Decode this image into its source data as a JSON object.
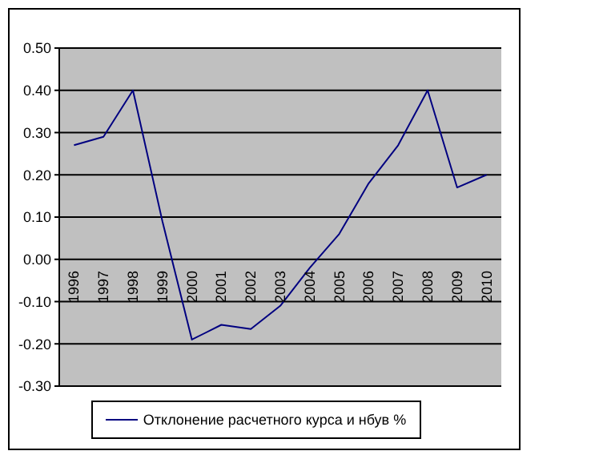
{
  "chart_data": {
    "type": "line",
    "categories": [
      "1996",
      "1997",
      "1998",
      "1999",
      "2000",
      "2001",
      "2002",
      "2003",
      "2004",
      "2005",
      "2006",
      "2007",
      "2008",
      "2009",
      "2010"
    ],
    "series": [
      {
        "name": "Отклонение расчетного курса и нбув %",
        "color": "#000080",
        "values": [
          0.27,
          0.29,
          0.4,
          0.09,
          -0.19,
          -0.155,
          -0.165,
          -0.11,
          -0.02,
          0.06,
          0.18,
          0.27,
          0.4,
          0.17,
          0.2
        ]
      }
    ],
    "ylim": [
      -0.3,
      0.5
    ],
    "yticks": [
      {
        "value": -0.3,
        "label": "-0.30"
      },
      {
        "value": -0.2,
        "label": "-0.20"
      },
      {
        "value": -0.1,
        "label": "-0.10"
      },
      {
        "value": 0,
        "label": "0.00"
      },
      {
        "value": 0.1,
        "label": "0.10"
      },
      {
        "value": 0.2,
        "label": "0.20"
      },
      {
        "value": 0.3,
        "label": "0.30"
      },
      {
        "value": 0.4,
        "label": "0.40"
      },
      {
        "value": 0.5,
        "label": "0.50"
      }
    ],
    "grid": "y",
    "legend": "bottom",
    "marker": "none",
    "line_style": "solid"
  }
}
